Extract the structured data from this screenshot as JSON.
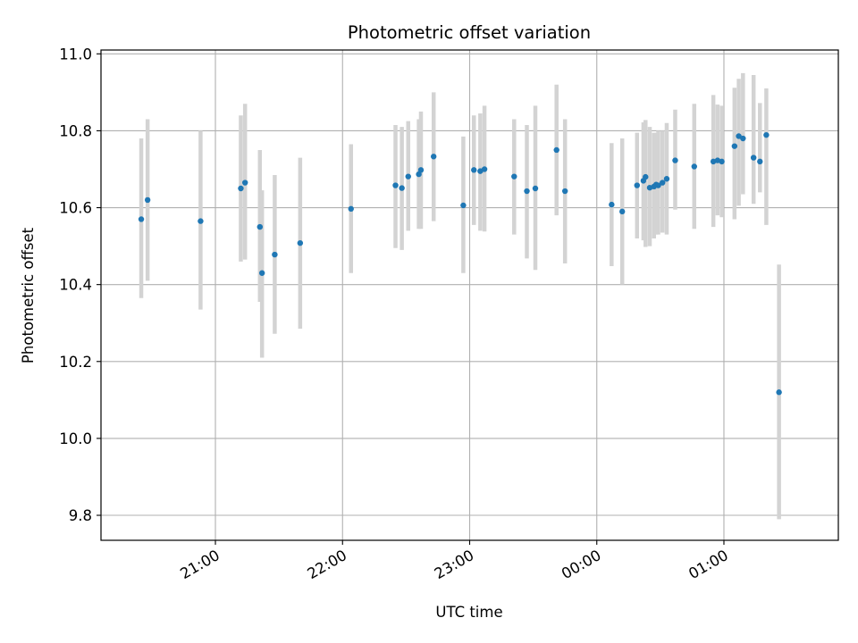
{
  "chart_data": {
    "type": "scatter",
    "title": "Photometric offset variation",
    "xlabel": "UTC time",
    "ylabel": "Photometric offset",
    "x_tick_labels": [
      "21:00",
      "22:00",
      "23:00",
      "00:00",
      "01:00"
    ],
    "y_tick_labels": [
      "9.8",
      "10.0",
      "10.2",
      "10.4",
      "10.6",
      "10.8",
      "11.0"
    ],
    "ylim": [
      9.735,
      11.01
    ],
    "xlim_minutes_from_2100": [
      -54,
      294
    ],
    "grid": true,
    "colors": {
      "marker": "#1f77b4",
      "errorbar": "#d3d3d3",
      "grid": "#b0b0b0"
    },
    "series": [
      {
        "x": [
          "20:25",
          "20:28",
          "20:53",
          "21:12",
          "21:14",
          "21:21",
          "21:22",
          "21:28",
          "21:40",
          "22:04",
          "22:25",
          "22:28",
          "22:31",
          "22:36",
          "22:37",
          "22:43",
          "22:57",
          "23:02",
          "23:05",
          "23:07",
          "23:21",
          "23:27",
          "23:31",
          "23:41",
          "23:45",
          "00:07",
          "00:12",
          "00:19",
          "00:22",
          "00:23",
          "00:25",
          "00:27",
          "00:28",
          "00:29",
          "00:31",
          "00:33",
          "00:37",
          "00:46",
          "00:55",
          "00:57",
          "00:59",
          "01:05",
          "01:07",
          "01:09",
          "01:14",
          "01:17",
          "01:20",
          "01:26"
        ],
        "y": [
          10.57,
          10.62,
          10.565,
          10.65,
          10.665,
          10.55,
          10.43,
          10.478,
          10.508,
          10.597,
          10.658,
          10.651,
          10.681,
          10.687,
          10.698,
          10.733,
          10.606,
          10.698,
          10.695,
          10.7,
          10.681,
          10.643,
          10.65,
          10.75,
          10.643,
          10.608,
          10.59,
          10.658,
          10.67,
          10.68,
          10.652,
          10.655,
          10.66,
          10.658,
          10.665,
          10.675,
          10.723,
          10.707,
          10.72,
          10.723,
          10.72,
          10.76,
          10.786,
          10.78,
          10.73,
          10.72,
          10.789,
          10.12
        ],
        "yerr_low": [
          10.365,
          10.41,
          10.335,
          10.46,
          10.465,
          10.355,
          10.21,
          10.272,
          10.285,
          10.43,
          10.495,
          10.49,
          10.54,
          10.545,
          10.545,
          10.565,
          10.43,
          10.555,
          10.54,
          10.538,
          10.53,
          10.468,
          10.438,
          10.58,
          10.455,
          10.448,
          10.4,
          10.52,
          10.515,
          10.498,
          10.5,
          10.52,
          10.53,
          10.53,
          10.535,
          10.53,
          10.595,
          10.545,
          10.55,
          10.58,
          10.575,
          10.57,
          10.605,
          10.635,
          10.61,
          10.64,
          10.555,
          9.79
        ],
        "yerr_high": [
          10.78,
          10.83,
          10.8,
          10.84,
          10.87,
          10.75,
          10.645,
          10.685,
          10.73,
          10.765,
          10.815,
          10.81,
          10.825,
          10.83,
          10.85,
          10.9,
          10.785,
          10.84,
          10.845,
          10.865,
          10.83,
          10.815,
          10.865,
          10.92,
          10.83,
          10.768,
          10.78,
          10.795,
          10.822,
          10.828,
          10.81,
          10.795,
          10.795,
          10.8,
          10.8,
          10.82,
          10.855,
          10.87,
          10.893,
          10.868,
          10.865,
          10.912,
          10.935,
          10.95,
          10.945,
          10.872,
          10.91,
          10.452
        ]
      }
    ]
  }
}
